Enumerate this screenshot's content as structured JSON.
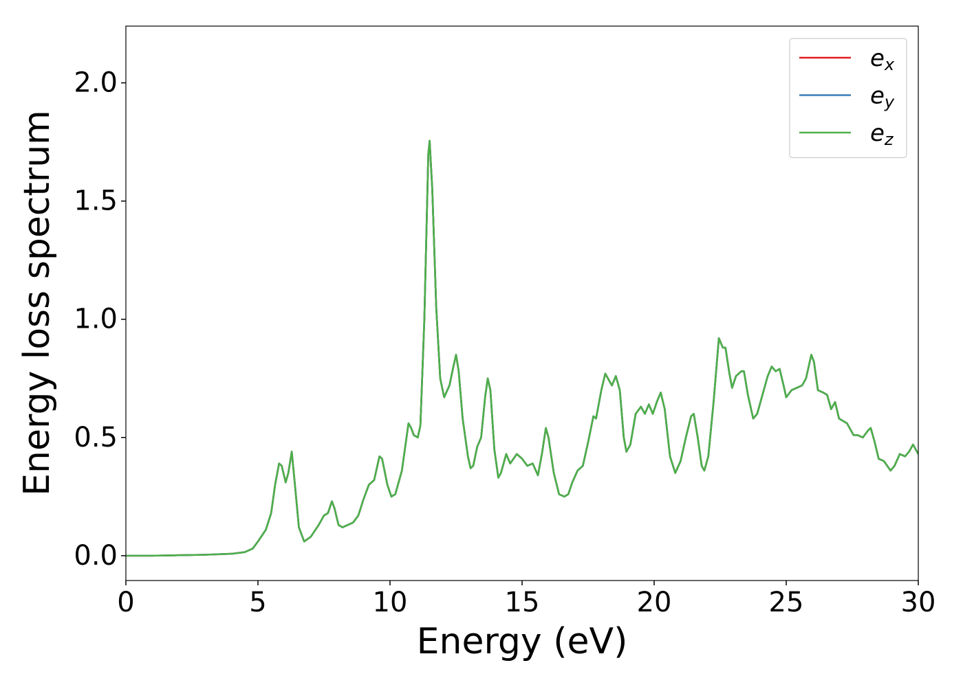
{
  "chart_data": {
    "type": "line",
    "xlabel": "Energy (eV)",
    "ylabel": "Energy loss spectrum",
    "x": [
      0,
      1,
      2,
      3,
      4,
      4.5,
      4.8,
      5.0,
      5.3,
      5.5,
      5.65,
      5.8,
      5.9,
      6.05,
      6.15,
      6.28,
      6.4,
      6.55,
      6.75,
      7.0,
      7.3,
      7.5,
      7.65,
      7.8,
      7.9,
      8.05,
      8.2,
      8.4,
      8.6,
      8.8,
      9.0,
      9.2,
      9.4,
      9.6,
      9.7,
      9.9,
      10.05,
      10.2,
      10.45,
      10.6,
      10.7,
      10.8,
      10.9,
      11.05,
      11.15,
      11.3,
      11.45,
      11.5,
      11.6,
      11.75,
      11.9,
      12.05,
      12.25,
      12.4,
      12.5,
      12.6,
      12.75,
      12.95,
      13.05,
      13.15,
      13.3,
      13.45,
      13.6,
      13.7,
      13.8,
      13.95,
      14.1,
      14.2,
      14.4,
      14.55,
      14.8,
      15.0,
      15.2,
      15.4,
      15.6,
      15.75,
      15.9,
      16.0,
      16.2,
      16.4,
      16.6,
      16.75,
      16.9,
      17.1,
      17.3,
      17.5,
      17.7,
      17.8,
      18.0,
      18.15,
      18.3,
      18.4,
      18.55,
      18.7,
      18.85,
      18.95,
      19.1,
      19.3,
      19.5,
      19.65,
      19.8,
      19.95,
      20.1,
      20.25,
      20.4,
      20.6,
      20.8,
      21.0,
      21.2,
      21.4,
      21.5,
      21.65,
      21.8,
      21.9,
      22.05,
      22.25,
      22.45,
      22.6,
      22.7,
      22.85,
      22.95,
      23.1,
      23.3,
      23.4,
      23.55,
      23.75,
      23.9,
      24.1,
      24.3,
      24.45,
      24.6,
      24.75,
      24.9,
      25.0,
      25.2,
      25.4,
      25.6,
      25.75,
      25.95,
      26.05,
      26.2,
      26.4,
      26.55,
      26.7,
      26.85,
      27.0,
      27.3,
      27.55,
      27.7,
      27.9,
      28.1,
      28.2,
      28.35,
      28.5,
      28.7,
      28.95,
      29.1,
      29.3,
      29.5,
      29.65,
      29.8,
      30.0
    ],
    "series": [
      {
        "name": "ex",
        "color": "#e41a1c",
        "values": [
          0,
          0,
          0.002,
          0.004,
          0.008,
          0.015,
          0.03,
          0.06,
          0.11,
          0.18,
          0.3,
          0.39,
          0.38,
          0.31,
          0.35,
          0.44,
          0.3,
          0.12,
          0.06,
          0.08,
          0.13,
          0.17,
          0.18,
          0.23,
          0.2,
          0.13,
          0.12,
          0.13,
          0.14,
          0.17,
          0.24,
          0.3,
          0.32,
          0.42,
          0.41,
          0.3,
          0.25,
          0.26,
          0.36,
          0.48,
          0.56,
          0.54,
          0.51,
          0.5,
          0.55,
          1.0,
          1.7,
          1.755,
          1.55,
          1.05,
          0.75,
          0.67,
          0.72,
          0.8,
          0.85,
          0.78,
          0.58,
          0.42,
          0.37,
          0.38,
          0.46,
          0.5,
          0.67,
          0.75,
          0.7,
          0.45,
          0.33,
          0.35,
          0.43,
          0.39,
          0.43,
          0.41,
          0.38,
          0.39,
          0.34,
          0.43,
          0.54,
          0.5,
          0.35,
          0.26,
          0.25,
          0.26,
          0.31,
          0.36,
          0.38,
          0.48,
          0.59,
          0.58,
          0.7,
          0.77,
          0.74,
          0.72,
          0.76,
          0.7,
          0.5,
          0.44,
          0.47,
          0.6,
          0.63,
          0.6,
          0.64,
          0.6,
          0.65,
          0.69,
          0.62,
          0.42,
          0.35,
          0.4,
          0.5,
          0.59,
          0.6,
          0.5,
          0.38,
          0.36,
          0.42,
          0.65,
          0.92,
          0.88,
          0.88,
          0.77,
          0.71,
          0.76,
          0.78,
          0.78,
          0.68,
          0.58,
          0.6,
          0.68,
          0.76,
          0.8,
          0.78,
          0.79,
          0.72,
          0.67,
          0.7,
          0.71,
          0.72,
          0.75,
          0.85,
          0.82,
          0.7,
          0.69,
          0.68,
          0.62,
          0.65,
          0.58,
          0.56,
          0.51,
          0.51,
          0.5,
          0.53,
          0.54,
          0.48,
          0.41,
          0.4,
          0.36,
          0.38,
          0.43,
          0.42,
          0.44,
          0.47,
          0.43
        ]
      },
      {
        "name": "ey",
        "color": "#377eb8",
        "values": [
          0,
          0,
          0.002,
          0.004,
          0.008,
          0.015,
          0.03,
          0.06,
          0.11,
          0.18,
          0.3,
          0.39,
          0.38,
          0.31,
          0.35,
          0.44,
          0.3,
          0.12,
          0.06,
          0.08,
          0.13,
          0.17,
          0.18,
          0.23,
          0.2,
          0.13,
          0.12,
          0.13,
          0.14,
          0.17,
          0.24,
          0.3,
          0.32,
          0.42,
          0.41,
          0.3,
          0.25,
          0.26,
          0.36,
          0.48,
          0.56,
          0.54,
          0.51,
          0.5,
          0.55,
          1.0,
          1.7,
          1.755,
          1.55,
          1.05,
          0.75,
          0.67,
          0.72,
          0.8,
          0.85,
          0.78,
          0.58,
          0.42,
          0.37,
          0.38,
          0.46,
          0.5,
          0.67,
          0.75,
          0.7,
          0.45,
          0.33,
          0.35,
          0.43,
          0.39,
          0.43,
          0.41,
          0.38,
          0.39,
          0.34,
          0.43,
          0.54,
          0.5,
          0.35,
          0.26,
          0.25,
          0.26,
          0.31,
          0.36,
          0.38,
          0.48,
          0.59,
          0.58,
          0.7,
          0.77,
          0.74,
          0.72,
          0.76,
          0.7,
          0.5,
          0.44,
          0.47,
          0.6,
          0.63,
          0.6,
          0.64,
          0.6,
          0.65,
          0.69,
          0.62,
          0.42,
          0.35,
          0.4,
          0.5,
          0.59,
          0.6,
          0.5,
          0.38,
          0.36,
          0.42,
          0.65,
          0.92,
          0.88,
          0.88,
          0.77,
          0.71,
          0.76,
          0.78,
          0.78,
          0.68,
          0.58,
          0.6,
          0.68,
          0.76,
          0.8,
          0.78,
          0.79,
          0.72,
          0.67,
          0.7,
          0.71,
          0.72,
          0.75,
          0.85,
          0.82,
          0.7,
          0.69,
          0.68,
          0.62,
          0.65,
          0.58,
          0.56,
          0.51,
          0.51,
          0.5,
          0.53,
          0.54,
          0.48,
          0.41,
          0.4,
          0.36,
          0.38,
          0.43,
          0.42,
          0.44,
          0.47,
          0.43
        ]
      },
      {
        "name": "ez",
        "color": "#4daf4a",
        "values": [
          0,
          0,
          0.002,
          0.004,
          0.008,
          0.015,
          0.03,
          0.06,
          0.11,
          0.18,
          0.3,
          0.39,
          0.38,
          0.31,
          0.35,
          0.44,
          0.3,
          0.12,
          0.06,
          0.08,
          0.13,
          0.17,
          0.18,
          0.23,
          0.2,
          0.13,
          0.12,
          0.13,
          0.14,
          0.17,
          0.24,
          0.3,
          0.32,
          0.42,
          0.41,
          0.3,
          0.25,
          0.26,
          0.36,
          0.48,
          0.56,
          0.54,
          0.51,
          0.5,
          0.55,
          1.0,
          1.7,
          1.755,
          1.55,
          1.05,
          0.75,
          0.67,
          0.72,
          0.8,
          0.85,
          0.78,
          0.58,
          0.42,
          0.37,
          0.38,
          0.46,
          0.5,
          0.67,
          0.75,
          0.7,
          0.45,
          0.33,
          0.35,
          0.43,
          0.39,
          0.43,
          0.41,
          0.38,
          0.39,
          0.34,
          0.43,
          0.54,
          0.5,
          0.35,
          0.26,
          0.25,
          0.26,
          0.31,
          0.36,
          0.38,
          0.48,
          0.59,
          0.58,
          0.7,
          0.77,
          0.74,
          0.72,
          0.76,
          0.7,
          0.5,
          0.44,
          0.47,
          0.6,
          0.63,
          0.6,
          0.64,
          0.6,
          0.65,
          0.69,
          0.62,
          0.42,
          0.35,
          0.4,
          0.5,
          0.59,
          0.6,
          0.5,
          0.38,
          0.36,
          0.42,
          0.65,
          0.92,
          0.88,
          0.88,
          0.77,
          0.71,
          0.76,
          0.78,
          0.78,
          0.68,
          0.58,
          0.6,
          0.68,
          0.76,
          0.8,
          0.78,
          0.79,
          0.72,
          0.67,
          0.7,
          0.71,
          0.72,
          0.75,
          0.85,
          0.82,
          0.7,
          0.69,
          0.68,
          0.62,
          0.65,
          0.58,
          0.56,
          0.51,
          0.51,
          0.5,
          0.53,
          0.54,
          0.48,
          0.41,
          0.4,
          0.36,
          0.38,
          0.43,
          0.42,
          0.44,
          0.47,
          0.43
        ]
      }
    ],
    "xlim": [
      0,
      30
    ],
    "xticks": [
      0,
      5,
      10,
      15,
      20,
      25,
      30
    ],
    "ylim": [
      -0.105,
      2.24
    ],
    "yticks": [
      {
        "value": 0,
        "label": "0.0"
      },
      0.5,
      {
        "value": 1,
        "label": "1.0"
      },
      1.5,
      {
        "value": 2,
        "label": "2.0"
      }
    ],
    "legend": "upper right",
    "grid": false
  }
}
